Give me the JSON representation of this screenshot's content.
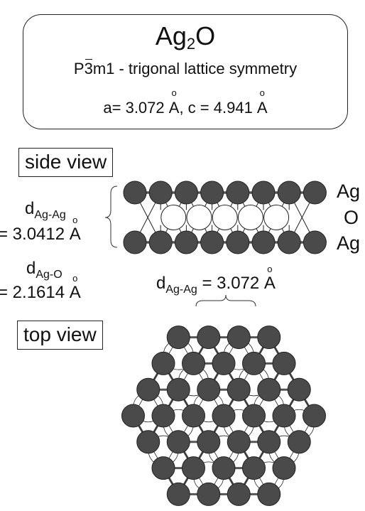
{
  "header": {
    "formula_main": "Ag",
    "formula_sub": "2",
    "formula_tail": "O",
    "symmetry_prefix": "P",
    "symmetry_bar": "3",
    "symmetry_rest": "m1 - trigonal lattice symmetry",
    "lattice_a": "a= 3.072 ",
    "lattice_unit": "A",
    "lattice_c": ", c = 4.941 "
  },
  "side_view": {
    "label": "side view",
    "layers": [
      "Ag",
      "O",
      "Ag"
    ],
    "d_agag_main": "d",
    "d_agag_sub": "Ag-Ag",
    "d_agag_value": "= 3.0412 ",
    "d_ago_main": "d",
    "d_ago_sub": "Ag-O",
    "d_ago_value": "= 2.1614 ",
    "unit": "A"
  },
  "top_view": {
    "label": "top view",
    "d_main": "d",
    "d_sub": "Ag-Ag",
    "d_value": " = 3.072 ",
    "unit": "A"
  },
  "colors": {
    "ag_atom": "#4a4a4a",
    "o_atom": "#ffffff",
    "bond": "#555555"
  }
}
